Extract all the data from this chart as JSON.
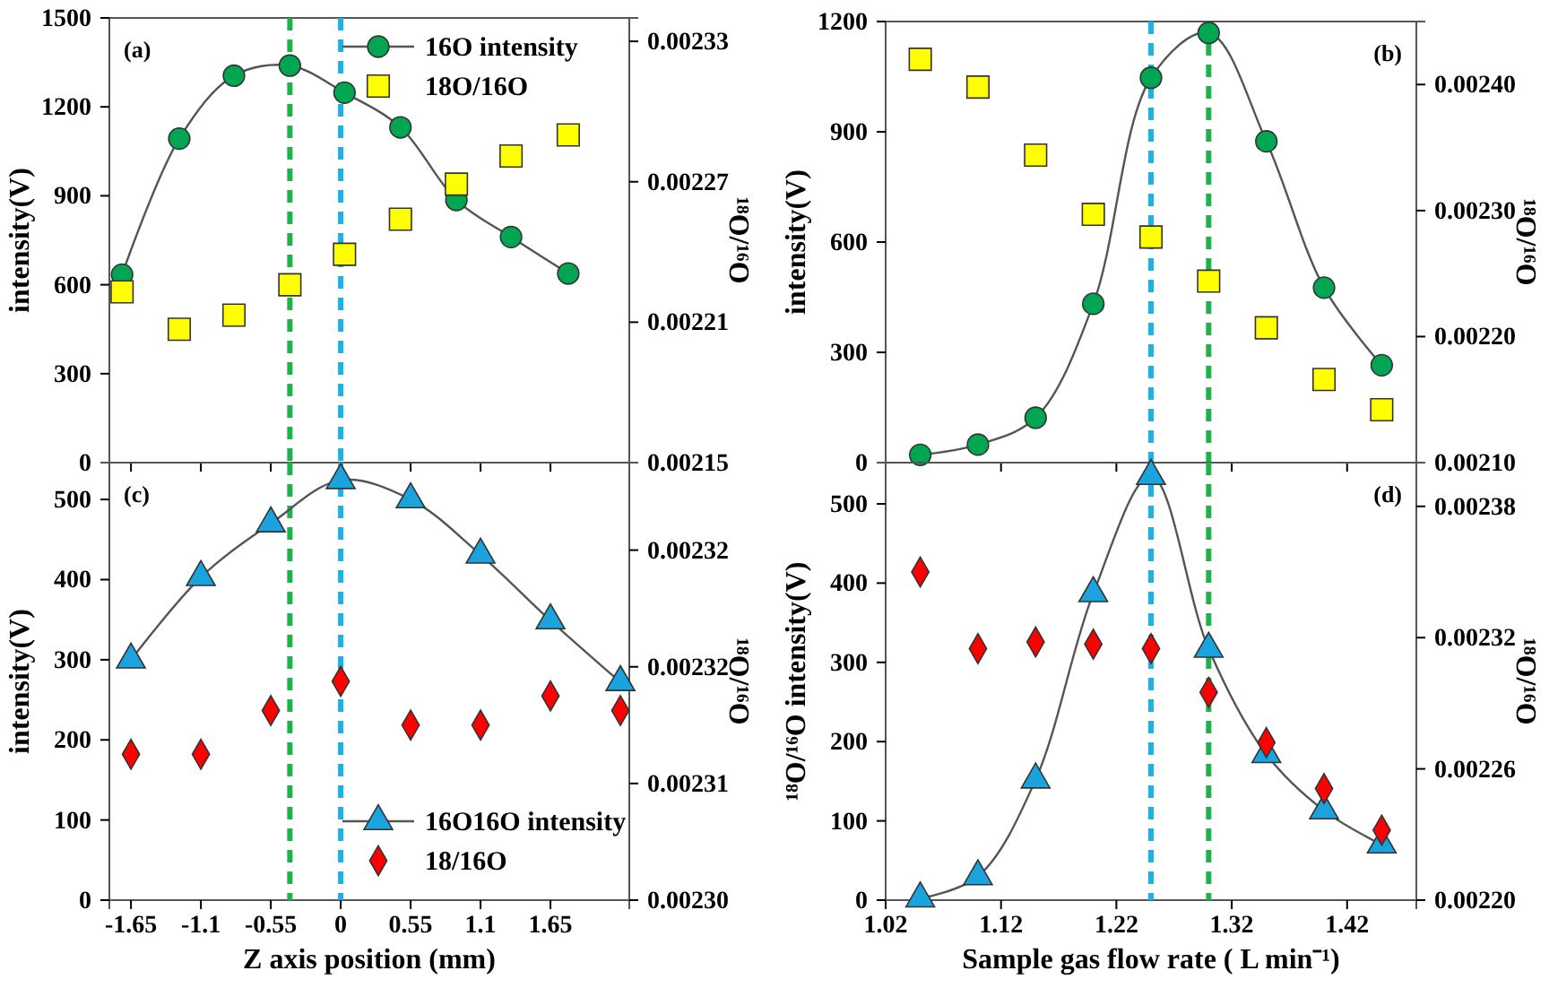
{
  "chart_data": [
    {
      "type": "line",
      "ylabel": "intensity(V)",
      "y2label": "¹⁸O/¹⁶O",
      "annotations": [
        "(a)"
      ],
      "legend": "top right",
      "tick_labels": "y",
      "x": [
        -1.72,
        -1.27,
        -0.84,
        -0.4,
        0.03,
        0.47,
        0.91,
        1.34,
        1.79
      ],
      "xlim": [
        -1.82,
        2.27
      ],
      "xticks": [
        -1.65,
        -1.1,
        -0.55,
        0,
        0.55,
        1.1,
        1.65
      ],
      "ylim": [
        0,
        1500
      ],
      "yticks": [
        0,
        300,
        600,
        900,
        1200,
        1500
      ],
      "y2lim": [
        0.00215,
        0.00234
      ],
      "y2ticks": [
        0.00215,
        0.00221,
        0.00227,
        0.00233
      ],
      "series": [
        {
          "name": "16O intensity",
          "type": "line",
          "color": "#00a651",
          "marker": "circle",
          "line_style": "solid",
          "values": [
            634,
            1093,
            1305,
            1339,
            1248,
            1131,
            886,
            761,
            638
          ]
        },
        {
          "name": "18O/16O",
          "type": "scatter",
          "axis": "y2",
          "color": "#ffff00",
          "marker": "square",
          "values": [
            0.002223,
            0.002207,
            0.002213,
            0.002226,
            0.002239,
            0.002254,
            0.002269,
            0.002281,
            0.00229
          ]
        }
      ],
      "ref_lines": [
        {
          "axis": "x",
          "value": -0.4,
          "color": "#1fb24a",
          "line_style": "dashed"
        },
        {
          "axis": "x",
          "value": 0,
          "color": "#1ab2e8",
          "line_style": "dashed"
        }
      ]
    },
    {
      "type": "line",
      "ylabel": "intensity(V)",
      "y2label": "¹⁸O/¹⁶O",
      "annotations": [
        "(b)"
      ],
      "tick_labels": "y",
      "x": [
        1.05,
        1.1,
        1.15,
        1.2,
        1.25,
        1.3,
        1.35,
        1.4,
        1.45
      ],
      "xlim": [
        1.02,
        1.48
      ],
      "xticks": [
        1.02,
        1.12,
        1.22,
        1.32,
        1.42
      ],
      "ylim": [
        0,
        1200
      ],
      "yticks": [
        0,
        300,
        600,
        900,
        1200
      ],
      "y2lim": [
        0.0021,
        0.00245
      ],
      "y2ticks": [
        {
          "value": 0.0021,
          "label": "0.00210"
        },
        {
          "value": 0.0022,
          "label": "0.00220"
        },
        {
          "value": 0.0023,
          "label": "0.00230"
        },
        {
          "value": 0.0024,
          "label": "0.00240"
        }
      ],
      "series": [
        {
          "type": "line",
          "color": "#00a651",
          "marker": "circle",
          "line_style": "solid",
          "values": [
            21,
            49,
            122,
            432,
            1047,
            1169,
            874,
            476,
            265
          ]
        },
        {
          "type": "scatter",
          "axis": "y2",
          "color": "#ffff00",
          "marker": "square",
          "values": [
            0.00242,
            0.002398,
            0.002344,
            0.002297,
            0.002279,
            0.002244,
            0.002207,
            0.002166,
            0.002142
          ]
        }
      ],
      "ref_lines": [
        {
          "axis": "x",
          "value": 1.25,
          "color": "#1ab2e8",
          "line_style": "dashed"
        },
        {
          "axis": "x",
          "value": 1.3,
          "color": "#1fb24a",
          "line_style": "dashed"
        }
      ]
    },
    {
      "type": "line",
      "xlabel": "Z axis position (mm)",
      "ylabel": "intensity(V)",
      "y2label": "¹⁸O/¹⁶O",
      "annotations": [
        "(c)"
      ],
      "legend": "bottom right",
      "x": [
        -1.65,
        -1.1,
        -0.55,
        0,
        0.55,
        1.1,
        1.65,
        2.2
      ],
      "xlim": [
        -1.82,
        2.27
      ],
      "xticks": [
        -1.65,
        -1.1,
        -0.55,
        0,
        0.55,
        1.1,
        1.65
      ],
      "ylim": [
        0,
        546
      ],
      "yticks": [
        0,
        100,
        200,
        300,
        400,
        500
      ],
      "y2lim": [
        0.0023,
        0.00233
      ],
      "y2ticks": [
        {
          "value": 0.0023,
          "label": "0.00230"
        },
        {
          "value": 0.002308,
          "label": "0.00231"
        },
        {
          "value": 0.002316,
          "label": "0.00232"
        },
        {
          "value": 0.002324,
          "label": "0.00232"
        }
      ],
      "series": [
        {
          "name": "16O16O intensity",
          "type": "line",
          "color": "#1aa3dd",
          "marker": "triangle",
          "line_style": "solid",
          "values": [
            300,
            403,
            470,
            524,
            500,
            431,
            349,
            272
          ]
        },
        {
          "name": "18/16O",
          "type": "scatter",
          "axis": "y2",
          "color": "#ff0000",
          "marker": "diamond",
          "values": [
            0.00231,
            0.00231,
            0.002313,
            0.002315,
            0.002312,
            0.002312,
            0.002314,
            0.002313
          ]
        }
      ],
      "ref_lines": [
        {
          "axis": "x",
          "value": -0.4,
          "color": "#1fb24a",
          "line_style": "dashed"
        },
        {
          "axis": "x",
          "value": 0,
          "color": "#1ab2e8",
          "line_style": "dashed"
        }
      ]
    },
    {
      "type": "line",
      "xlabel": "Sample gas flow rate ( L min⁻¹)",
      "ylabel": "¹⁸O/¹⁶O intensity(V)",
      "y2label": "¹⁸O/¹⁶O",
      "annotations": [
        "(d)"
      ],
      "x": [
        1.05,
        1.1,
        1.15,
        1.2,
        1.25,
        1.3,
        1.35,
        1.4,
        1.45
      ],
      "xlim": [
        1.02,
        1.48
      ],
      "xticks": [
        1.02,
        1.12,
        1.22,
        1.32,
        1.42
      ],
      "ylim": [
        0,
        552
      ],
      "yticks": [
        0,
        100,
        200,
        300,
        400,
        500
      ],
      "y2lim": [
        0.0022,
        0.0024
      ],
      "y2ticks": [
        {
          "value": 0.0022,
          "label": "0.00220"
        },
        0.00226,
        0.00232,
        0.00238
      ],
      "series": [
        {
          "type": "line",
          "color": "#1aa3dd",
          "marker": "triangle",
          "line_style": "solid",
          "values": [
            2,
            30,
            152,
            387,
            535,
            317,
            184,
            113,
            70
          ]
        },
        {
          "type": "scatter",
          "axis": "y2",
          "color": "#ff0000",
          "marker": "diamond",
          "values": [
            0.00235,
            0.002315,
            0.002318,
            0.002317,
            0.002315,
            0.002295,
            0.002272,
            0.002251,
            0.002232
          ]
        }
      ],
      "ref_lines": [
        {
          "axis": "x",
          "value": 1.25,
          "color": "#1ab2e8",
          "line_style": "dashed"
        },
        {
          "axis": "x",
          "value": 1.3,
          "color": "#1fb24a",
          "line_style": "dashed"
        }
      ]
    }
  ]
}
